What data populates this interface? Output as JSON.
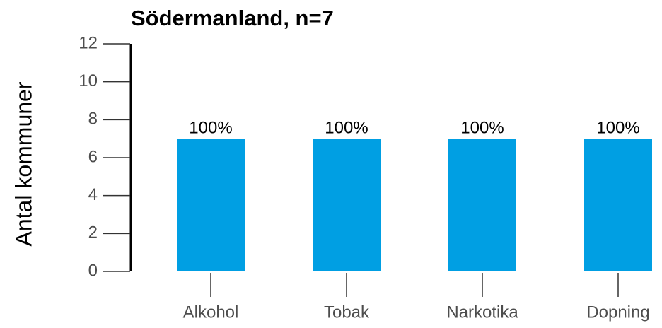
{
  "chart_data": {
    "type": "bar",
    "title": "Södermanland, n=7",
    "ylabel": "Antal kommuner",
    "categories": [
      "Alkohol",
      "Tobak",
      "Narkotika",
      "Dopning"
    ],
    "values": [
      7,
      7,
      7,
      7
    ],
    "value_labels": [
      "100%",
      "100%",
      "100%",
      "100%"
    ],
    "color": "#009fe3",
    "ylim": [
      0,
      12
    ],
    "yticks": [
      0,
      2,
      4,
      6,
      8,
      10,
      12
    ]
  }
}
